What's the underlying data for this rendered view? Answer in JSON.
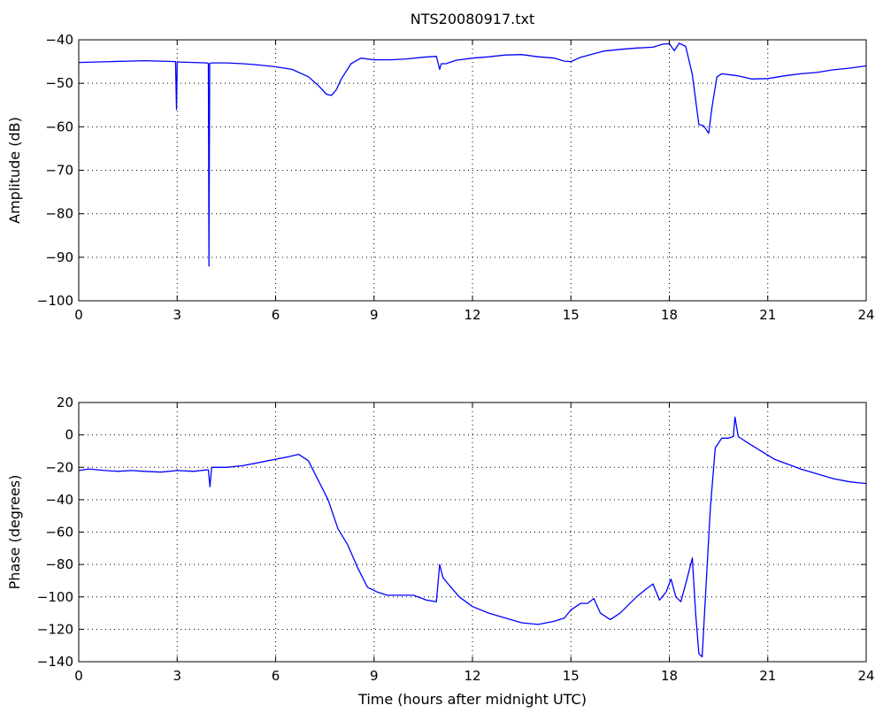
{
  "figure": {
    "title": "NTS20080917.txt",
    "xlabel": "Time (hours after midnight UTC)"
  },
  "chart_data": [
    {
      "type": "line",
      "title": "NTS20080917.txt",
      "xlabel": "",
      "ylabel": "Amplitude (dB)",
      "xlim": [
        0,
        24
      ],
      "ylim": [
        -100,
        -40
      ],
      "xticks": [
        0,
        3,
        6,
        9,
        12,
        15,
        18,
        21,
        24
      ],
      "yticks": [
        -40,
        -50,
        -60,
        -70,
        -80,
        -90,
        -100
      ],
      "grid": true,
      "series": [
        {
          "color": "#0000ff",
          "x": [
            0,
            0.5,
            1,
            1.5,
            2,
            2.5,
            2.95,
            2.98,
            3.0,
            3.02,
            3.05,
            3.5,
            3.9,
            3.95,
            3.97,
            3.99,
            4.01,
            4.05,
            4.5,
            5,
            5.5,
            6,
            6.5,
            7.0,
            7.3,
            7.55,
            7.7,
            7.85,
            8.0,
            8.3,
            8.6,
            9.0,
            9.5,
            10.0,
            10.5,
            10.9,
            11.0,
            11.05,
            11.2,
            11.5,
            12,
            12.5,
            13,
            13.5,
            14,
            14.5,
            14.8,
            15.0,
            15.3,
            15.7,
            16,
            16.5,
            17,
            17.5,
            17.8,
            18.0,
            18.15,
            18.3,
            18.5,
            18.7,
            18.9,
            19.05,
            19.2,
            19.3,
            19.45,
            19.6,
            19.8,
            20.1,
            20.5,
            21,
            21.5,
            22,
            22.5,
            23,
            23.5,
            24
          ],
          "y": [
            -45.2,
            -45.1,
            -45.0,
            -44.9,
            -44.8,
            -44.9,
            -45.0,
            -56.0,
            -45.1,
            -45.0,
            -45.1,
            -45.2,
            -45.3,
            -45.4,
            -92.0,
            -45.5,
            -45.4,
            -45.3,
            -45.3,
            -45.5,
            -45.8,
            -46.2,
            -46.8,
            -48.5,
            -50.5,
            -52.5,
            -52.8,
            -51.5,
            -49.0,
            -45.5,
            -44.2,
            -44.6,
            -44.6,
            -44.4,
            -44.0,
            -43.8,
            -46.8,
            -45.5,
            -45.5,
            -44.7,
            -44.2,
            -43.9,
            -43.5,
            -43.4,
            -43.9,
            -44.2,
            -44.9,
            -45.0,
            -44.0,
            -43.2,
            -42.6,
            -42.2,
            -41.9,
            -41.7,
            -41.0,
            -40.9,
            -42.5,
            -40.8,
            -41.5,
            -48.0,
            -59.5,
            -59.8,
            -61.5,
            -55.5,
            -48.5,
            -47.8,
            -48.0,
            -48.3,
            -49.0,
            -48.9,
            -48.3,
            -47.8,
            -47.5,
            -46.9,
            -46.5,
            -46.0
          ]
        }
      ]
    },
    {
      "type": "line",
      "title": "",
      "xlabel": "Time (hours after midnight UTC)",
      "ylabel": "Phase (degrees)",
      "xlim": [
        0,
        24
      ],
      "ylim": [
        -140,
        20
      ],
      "xticks": [
        0,
        3,
        6,
        9,
        12,
        15,
        18,
        21,
        24
      ],
      "yticks": [
        20,
        0,
        -20,
        -40,
        -60,
        -80,
        -100,
        -120,
        -140
      ],
      "grid": true,
      "series": [
        {
          "color": "#0000ff",
          "x": [
            0,
            0.3,
            0.8,
            1.2,
            1.6,
            2.0,
            2.5,
            3.0,
            3.5,
            3.95,
            4.0,
            4.05,
            4.5,
            5.0,
            5.5,
            6.0,
            6.4,
            6.7,
            7.0,
            7.3,
            7.6,
            7.9,
            8.2,
            8.5,
            8.8,
            9.1,
            9.4,
            9.8,
            10.2,
            10.6,
            10.9,
            11.0,
            11.1,
            11.3,
            11.6,
            12.0,
            12.5,
            13.0,
            13.5,
            14.0,
            14.5,
            14.8,
            15.0,
            15.3,
            15.5,
            15.7,
            15.9,
            16.2,
            16.5,
            16.8,
            17.0,
            17.3,
            17.5,
            17.7,
            17.9,
            18.05,
            18.2,
            18.35,
            18.5,
            18.7,
            18.8,
            18.9,
            19.0,
            19.1,
            19.25,
            19.4,
            19.6,
            19.8,
            19.95,
            20.0,
            20.1,
            20.4,
            20.8,
            21.2,
            21.6,
            22.0,
            22.5,
            23.0,
            23.5,
            24.0
          ],
          "y": [
            -22,
            -21,
            -22,
            -22.5,
            -22,
            -22.5,
            -23,
            -22,
            -22.5,
            -21.5,
            -32,
            -20,
            -20,
            -19,
            -17,
            -15,
            -13.5,
            -12,
            -16,
            -28,
            -40,
            -58,
            -68,
            -82,
            -94,
            -97,
            -99,
            -99,
            -99,
            -102,
            -103,
            -80,
            -88,
            -93,
            -100,
            -106,
            -110,
            -113,
            -116,
            -117,
            -115,
            -113,
            -108,
            -104,
            -104,
            -101,
            -110,
            -114,
            -110,
            -104,
            -100,
            -95,
            -92,
            -102,
            -97,
            -89,
            -100,
            -103,
            -92,
            -76,
            -110,
            -135,
            -137,
            -100,
            -45,
            -8,
            -2,
            -2,
            -1,
            11,
            -1,
            -5,
            -10,
            -15,
            -18,
            -21,
            -24,
            -27,
            -29,
            -30
          ]
        }
      ]
    }
  ]
}
